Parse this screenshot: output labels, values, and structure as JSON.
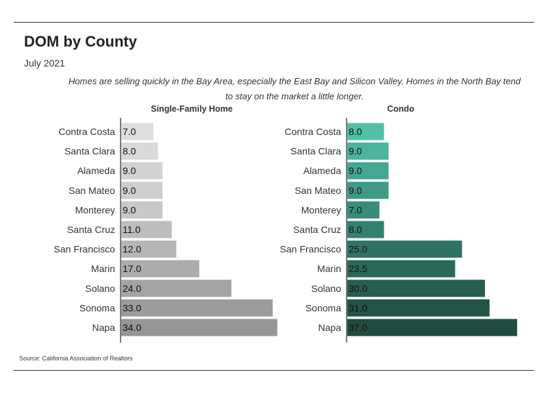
{
  "header": {
    "title": "DOM by County",
    "subtitle": "July 2021",
    "description": "Homes are selling quickly in the Bay Area, especially the East Bay and Silicon Valley. Homes in the North Bay tend to stay on the market a little longer."
  },
  "footer": {
    "source": "Source:  California Association of Realtors"
  },
  "chart_data": [
    {
      "type": "bar",
      "orientation": "horizontal",
      "title": "Single-Family Home",
      "xlabel": "",
      "ylabel": "",
      "xlim": [
        0,
        40
      ],
      "categories": [
        "Contra Costa",
        "Santa Clara",
        "Alameda",
        "San Mateo",
        "Monterey",
        "Santa Cruz",
        "San Francisco",
        "Marin",
        "Solano",
        "Sonoma",
        "Napa"
      ],
      "values": [
        7.0,
        8.0,
        9.0,
        9.0,
        9.0,
        11.0,
        12.0,
        17.0,
        24.0,
        33.0,
        34.0
      ],
      "value_labels": [
        "7.0",
        "8.0",
        "9.0",
        "9.0",
        "9.0",
        "11.0",
        "12.0",
        "17.0",
        "24.0",
        "33.0",
        "34.0"
      ],
      "colors": [
        "#dedede",
        "#d9d9d9",
        "#d2d2d2",
        "#cecece",
        "#c8c8c8",
        "#bdbdbd",
        "#b6b6b6",
        "#acacac",
        "#a3a3a3",
        "#9c9c9c",
        "#969696"
      ],
      "grid": false,
      "legend": "none"
    },
    {
      "type": "bar",
      "orientation": "horizontal",
      "title": "Condo",
      "xlabel": "",
      "ylabel": "",
      "xlim": [
        0,
        40
      ],
      "categories": [
        "Contra Costa",
        "Santa Clara",
        "Alameda",
        "San Mateo",
        "Monterey",
        "Santa Cruz",
        "San Francisco",
        "Marin",
        "Solano",
        "Sonoma",
        "Napa"
      ],
      "values": [
        8.0,
        9.0,
        9.0,
        9.0,
        7.0,
        8.0,
        25.0,
        23.5,
        30.0,
        31.0,
        37.0
      ],
      "value_labels": [
        "8.0",
        "9.0",
        "9.0",
        "9.0",
        "7.0",
        "8.0",
        "25.0",
        "23.5",
        "30.0",
        "31.0",
        "37.0"
      ],
      "colors": [
        "#52bfa7",
        "#4bb49c",
        "#45a793",
        "#3f9a88",
        "#398c7c",
        "#357f71",
        "#2f7364",
        "#2a6859",
        "#275e50",
        "#245447",
        "#214b3f"
      ],
      "grid": false,
      "legend": "none"
    }
  ]
}
